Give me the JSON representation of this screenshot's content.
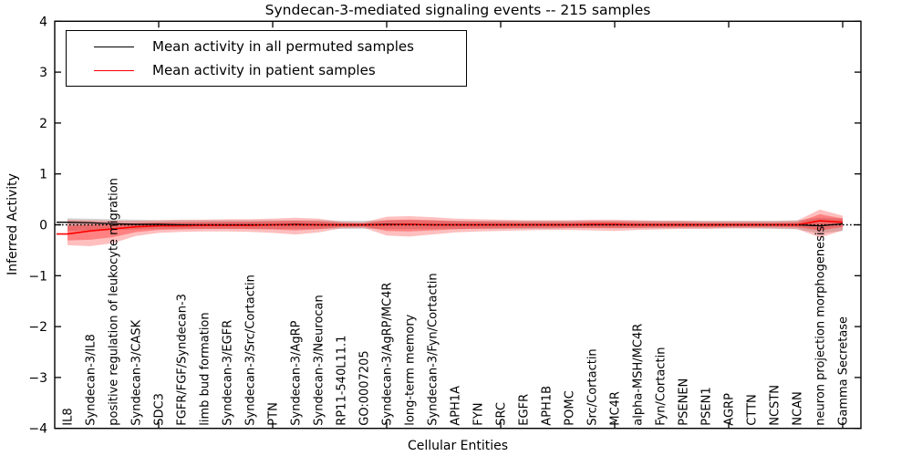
{
  "chart_data": {
    "type": "line",
    "title": "Syndecan-3-mediated signaling events -- 215 samples",
    "xlabel": "Cellular Entities",
    "ylabel": "Inferred Activity",
    "ylim": [
      -4,
      4
    ],
    "yticks": [
      4,
      3,
      2,
      1,
      0,
      -1,
      -2,
      -3,
      -4
    ],
    "xtick_mark_indices": [
      4,
      9,
      14,
      19,
      24,
      29,
      34
    ],
    "grid": false,
    "zero_line_dashed": true,
    "legend_position": "upper left",
    "categories": [
      "IL8",
      "Syndecan-3/IL8",
      "positive regulation of leukocyte migration",
      "Syndecan-3/CASK",
      "SDC3",
      "FGFR/FGF/Syndecan-3",
      "limb bud formation",
      "Syndecan-3/EGFR",
      "Syndecan-3/Src/Cortactin",
      "PTN",
      "Syndecan-3/AgRP",
      "Syndecan-3/Neurocan",
      "RP11-540L11.1",
      "GO:0007205",
      "Syndecan-3/AgRP/MC4R",
      "long-term memory",
      "Syndecan-3/Fyn/Cortactin",
      "APH1A",
      "FYN",
      "SRC",
      "EGFR",
      "APH1B",
      "POMC",
      "Src/Cortactin",
      "MC4R",
      "alpha-MSH/MC4R",
      "Fyn/Cortactin",
      "PSENEN",
      "PSEN1",
      "AGRP",
      "CTTN",
      "NCSTN",
      "NCAN",
      "neuron projection morphogenesis",
      "Gamma Secretase"
    ],
    "series": [
      {
        "name": "Mean activity in all permuted samples",
        "color": "#000000",
        "values": [
          0.05,
          0.04,
          0.02,
          0.01,
          0.01,
          0,
          0,
          0,
          0,
          0,
          0.01,
          0,
          0,
          0,
          0.01,
          0.01,
          0,
          0,
          0,
          0,
          0,
          0,
          0,
          0,
          0,
          0,
          0,
          0,
          0,
          0,
          0,
          0,
          0,
          -0.02,
          0.02
        ],
        "band": {
          "lower": [
            -0.12,
            -0.11,
            -0.1,
            -0.09,
            -0.08,
            -0.08,
            -0.08,
            -0.08,
            -0.08,
            -0.08,
            -0.08,
            -0.08,
            -0.08,
            -0.08,
            -0.08,
            -0.08,
            -0.08,
            -0.08,
            -0.08,
            -0.08,
            -0.08,
            -0.08,
            -0.07,
            -0.07,
            -0.07,
            -0.07,
            -0.07,
            -0.07,
            -0.07,
            -0.07,
            -0.07,
            -0.08,
            -0.09,
            -0.17,
            -0.12
          ],
          "upper": [
            0.13,
            0.12,
            0.11,
            0.1,
            0.09,
            0.09,
            0.09,
            0.09,
            0.09,
            0.09,
            0.09,
            0.09,
            0.08,
            0.08,
            0.09,
            0.09,
            0.09,
            0.08,
            0.08,
            0.08,
            0.08,
            0.08,
            0.08,
            0.08,
            0.08,
            0.08,
            0.08,
            0.08,
            0.08,
            0.08,
            0.08,
            0.08,
            0.09,
            0.14,
            0.12
          ],
          "color": "#999999",
          "opacity": 0.4
        }
      },
      {
        "name": "Mean activity in patient samples",
        "color": "#ff0000",
        "values": [
          -0.18,
          -0.12,
          -0.08,
          -0.04,
          -0.02,
          -0.02,
          -0.01,
          -0.01,
          -0.01,
          0,
          0,
          0,
          0,
          0,
          0,
          0.01,
          0,
          0,
          0,
          0,
          0,
          0,
          0,
          0.01,
          0.01,
          0,
          0,
          0,
          0,
          0,
          0,
          0,
          0,
          0.08,
          0.05
        ],
        "band": {
          "lower": [
            -0.4,
            -0.42,
            -0.36,
            -0.22,
            -0.16,
            -0.14,
            -0.13,
            -0.13,
            -0.14,
            -0.16,
            -0.19,
            -0.15,
            -0.07,
            -0.06,
            -0.21,
            -0.23,
            -0.19,
            -0.15,
            -0.13,
            -0.12,
            -0.11,
            -0.1,
            -0.1,
            -0.11,
            -0.12,
            -0.1,
            -0.09,
            -0.08,
            -0.08,
            -0.07,
            -0.07,
            -0.07,
            -0.08,
            -0.25,
            -0.11
          ],
          "upper": [
            0.1,
            0.09,
            0.08,
            0.08,
            0.09,
            0.1,
            0.1,
            0.11,
            0.11,
            0.12,
            0.14,
            0.12,
            0.06,
            0.05,
            0.16,
            0.17,
            0.15,
            0.12,
            0.11,
            0.1,
            0.09,
            0.09,
            0.09,
            0.1,
            0.1,
            0.09,
            0.08,
            0.08,
            0.07,
            0.07,
            0.07,
            0.07,
            0.08,
            0.3,
            0.18
          ],
          "color": "#ff0000",
          "opacity": 0.25,
          "inner_band_scale": 0.58,
          "inner_opacity": 0.32
        }
      }
    ]
  },
  "legend": {
    "items": [
      {
        "label": "Mean activity in all permuted samples",
        "color": "#000000"
      },
      {
        "label": "Mean activity in patient samples",
        "color": "#ff0000"
      }
    ]
  }
}
